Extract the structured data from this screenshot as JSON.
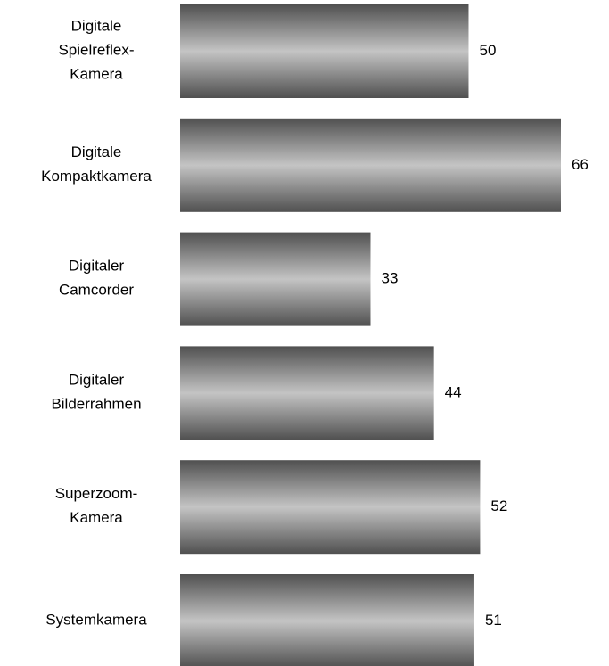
{
  "chart_data": {
    "type": "hbar",
    "categories": [
      "Digitale\nSpielreflex-\nKamera",
      "Digitale\nKompaktkamera",
      "Digitaler\nCamcorder",
      "Digitaler\nBilderrahmen",
      "Superzoom-\nKamera",
      "Systemkamera"
    ],
    "values": [
      50,
      66,
      33,
      44,
      52,
      51
    ],
    "color": [
      "#505050",
      "#c4c4c4",
      "#505050"
    ]
  }
}
